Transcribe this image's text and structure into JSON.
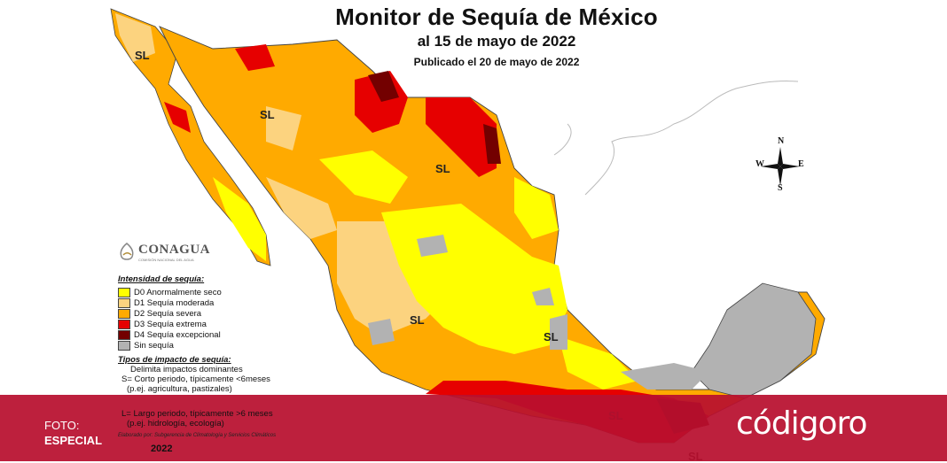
{
  "header": {
    "title": "Monitor de Sequía de México",
    "subtitle": "al 15 de mayo de 2022",
    "published": "Publicado el 20 de mayo de 2022"
  },
  "map_labels": {
    "sl": "SL"
  },
  "compass": {
    "n": "N",
    "s": "S",
    "e": "E",
    "w": "W"
  },
  "logo": {
    "name": "CONAGUA",
    "tagline": "COMISIÓN NACIONAL DEL AGUA"
  },
  "legend": {
    "heading": "Intensidad de sequía:",
    "items": [
      {
        "label": "D0 Anormalmente seco",
        "color": "#ffff00"
      },
      {
        "label": "D1 Sequía moderada",
        "color": "#fcd37f"
      },
      {
        "label": "D2 Sequía severa",
        "color": "#ffaa00"
      },
      {
        "label": "D3 Sequía extrema",
        "color": "#e60000"
      },
      {
        "label": "D4 Sequía excepcional",
        "color": "#730000"
      },
      {
        "label": "Sin sequía",
        "color": "#b2b2b2"
      }
    ],
    "impact_heading": "Tipos de impacto de sequía:",
    "impact_lines": [
      "Delimita impactos dominantes",
      "S= Corto periodo, típicamente <6meses",
      "(p.ej. agricultura, pastizales)",
      "L= Largo periodo, típicamente >6 meses",
      "(p.ej. hidrología, ecología)"
    ]
  },
  "credit": "Elaborado por: Subgerencia de Climatología y Servicios Climáticos",
  "year": "2022",
  "banner": {
    "foto_label": "FOTO:",
    "foto_value": "ESPECIAL",
    "brand": "códigoro"
  },
  "colors": {
    "banner": "#b80f2e",
    "d0": "#ffff00",
    "d1": "#fcd37f",
    "d2": "#ffaa00",
    "d3": "#e60000",
    "d4": "#730000",
    "none": "#b2b2b2"
  }
}
